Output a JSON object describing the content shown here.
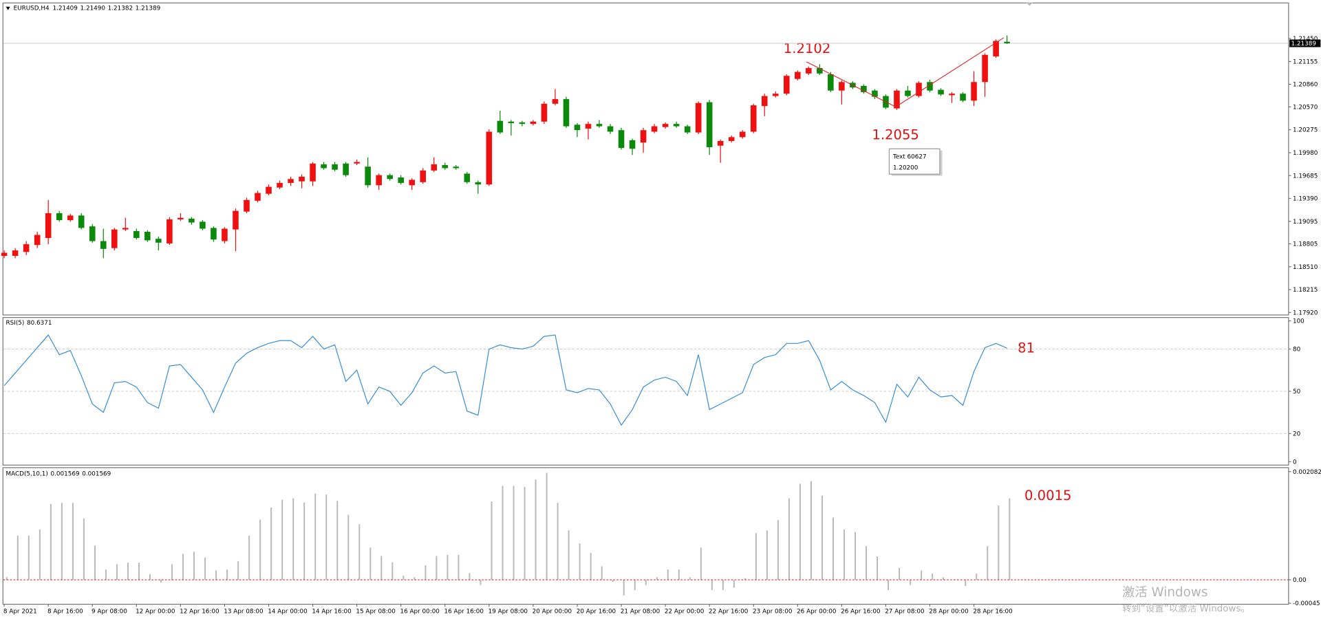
{
  "chart_data": [
    {
      "type": "candlestick",
      "symbol": "EURUSD,H4",
      "quote": {
        "values": [
          1.21409,
          1.2149,
          1.21382,
          1.21389
        ],
        "value_labels": [
          "1.21409",
          "1.21490",
          "1.21382",
          "1.21389"
        ]
      },
      "categories": [
        "8 Apr 2021",
        null,
        null,
        null,
        "8 Apr 16:00",
        null,
        null,
        null,
        "9 Apr 08:00",
        null,
        null,
        null,
        "12 Apr 00:00",
        null,
        null,
        null,
        "12 Apr 16:00",
        null,
        null,
        null,
        "13 Apr 08:00",
        null,
        null,
        null,
        "14 Apr 00:00",
        null,
        null,
        null,
        "14 Apr 16:00",
        null,
        null,
        null,
        "15 Apr 08:00",
        null,
        null,
        null,
        "16 Apr 00:00",
        null,
        null,
        null,
        "16 Apr 16:00",
        null,
        null,
        null,
        "19 Apr 08:00",
        null,
        null,
        null,
        "20 Apr 00:00",
        null,
        null,
        null,
        "20 Apr 16:00",
        null,
        null,
        null,
        "21 Apr 08:00",
        null,
        null,
        null,
        "22 Apr 00:00",
        null,
        null,
        null,
        "22 Apr 16:00",
        null,
        null,
        null,
        "23 Apr 08:00",
        null,
        null,
        null,
        "26 Apr 00:00",
        null,
        null,
        null,
        "26 Apr 16:00",
        null,
        null,
        null,
        "27 Apr 08:00",
        null,
        null,
        null,
        "28 Apr 00:00",
        null,
        null,
        null,
        "28 Apr 16:00",
        null,
        null,
        null
      ],
      "open": [
        1.1865,
        1.1865,
        1.187,
        1.1879,
        1.1888,
        1.192,
        1.1911,
        1.1917,
        1.1903,
        1.1884,
        1.1875,
        1.1899,
        1.1897,
        1.1896,
        1.1887,
        1.1881,
        1.1912,
        1.1913,
        1.1909,
        1.1901,
        1.1884,
        1.1899,
        1.1922,
        1.1936,
        1.1945,
        1.1953,
        1.1959,
        1.1961,
        1.1961,
        1.1983,
        1.1983,
        1.1984,
        1.1984,
        1.198,
        1.1956,
        1.1969,
        1.1966,
        1.1956,
        1.196,
        1.1975,
        1.1982,
        1.198,
        1.1971,
        1.196,
        1.1957,
        1.2039,
        1.2038,
        1.2037,
        1.2035,
        1.2038,
        1.2061,
        1.2067,
        1.2034,
        1.2029,
        1.2035,
        1.2032,
        1.2027,
        1.2014,
        1.2011,
        1.2025,
        1.2031,
        1.2035,
        1.2032,
        1.2024,
        1.2063,
        1.2007,
        1.2013,
        1.2018,
        1.2025,
        1.2058,
        1.2071,
        1.2074,
        1.2093,
        1.21,
        1.2107,
        1.2099,
        1.2078,
        1.2088,
        1.2084,
        1.2078,
        1.2071,
        1.2055,
        1.2078,
        1.2071,
        1.2089,
        1.2079,
        1.2072,
        1.2074,
        1.2065,
        1.2089,
        1.2122,
        1.21409
      ],
      "high": [
        1.1872,
        1.1875,
        1.1884,
        1.1896,
        1.1937,
        1.1923,
        1.1919,
        1.192,
        1.1906,
        1.19,
        1.1901,
        1.1914,
        1.19,
        1.1898,
        1.189,
        1.1915,
        1.192,
        1.1915,
        1.1911,
        1.1903,
        1.1902,
        1.1926,
        1.194,
        1.1949,
        1.1957,
        1.1962,
        1.1967,
        1.197,
        1.1986,
        1.1986,
        1.1986,
        1.1986,
        1.1989,
        1.1992,
        1.1971,
        1.1971,
        1.1969,
        1.1965,
        1.1978,
        1.1992,
        1.1985,
        1.1982,
        1.1973,
        1.1962,
        1.2028,
        1.2052,
        1.204,
        1.2039,
        1.204,
        1.2064,
        1.208,
        1.207,
        1.2036,
        1.2038,
        1.204,
        1.2035,
        1.203,
        1.2016,
        1.203,
        1.2035,
        1.2037,
        1.2038,
        1.2034,
        1.2064,
        1.2066,
        1.2015,
        1.202,
        1.2027,
        1.2061,
        1.2074,
        1.2077,
        1.2099,
        1.2104,
        1.2109,
        1.2112,
        1.2102,
        1.2091,
        1.209,
        1.2086,
        1.208,
        1.2073,
        1.208,
        1.2084,
        1.209,
        1.2092,
        1.2081,
        1.2076,
        1.2076,
        1.2103,
        1.2126,
        1.2144,
        1.2149
      ],
      "low": [
        1.1862,
        1.1862,
        1.1866,
        1.1875,
        1.188,
        1.1909,
        1.1909,
        1.1899,
        1.1882,
        1.1862,
        1.1872,
        1.1897,
        1.1886,
        1.1883,
        1.1872,
        1.1879,
        1.191,
        1.1905,
        1.1898,
        1.1883,
        1.1881,
        1.1871,
        1.192,
        1.1934,
        1.1943,
        1.1951,
        1.1955,
        1.1952,
        1.1955,
        1.1976,
        1.1974,
        1.1967,
        1.1982,
        1.1953,
        1.195,
        1.1962,
        1.1957,
        1.195,
        1.1958,
        1.1973,
        1.1976,
        1.1976,
        1.1958,
        1.1945,
        1.1955,
        1.2022,
        1.202,
        1.2032,
        1.2033,
        1.2035,
        1.2059,
        1.203,
        1.2018,
        1.2015,
        1.203,
        1.2022,
        1.2002,
        1.1995,
        1.1998,
        1.2023,
        1.2029,
        1.203,
        1.2022,
        1.2022,
        1.1995,
        1.1985,
        1.2011,
        1.2016,
        1.2023,
        1.2045,
        1.2069,
        1.2072,
        1.2091,
        1.2098,
        1.2098,
        1.2076,
        1.206,
        1.208,
        1.2074,
        1.2067,
        1.2054,
        1.2053,
        1.2069,
        1.2069,
        1.2076,
        1.2071,
        1.2062,
        1.2063,
        1.2058,
        1.207,
        1.212,
        1.21382
      ],
      "close": [
        1.1869,
        1.1872,
        1.188,
        1.1892,
        1.192,
        1.1911,
        1.1917,
        1.1901,
        1.1884,
        1.1874,
        1.1899,
        1.1901,
        1.1888,
        1.1885,
        1.1882,
        1.1912,
        1.1914,
        1.1908,
        1.19,
        1.1886,
        1.19,
        1.1923,
        1.1937,
        1.1946,
        1.1954,
        1.1959,
        1.1964,
        1.1967,
        1.1984,
        1.1978,
        1.1976,
        1.1969,
        1.1986,
        1.1956,
        1.1969,
        1.1964,
        1.1959,
        1.1963,
        1.1975,
        1.1983,
        1.1978,
        1.1978,
        1.196,
        1.1957,
        1.2025,
        1.2024,
        1.2036,
        1.2035,
        1.2038,
        1.2061,
        1.2067,
        1.2032,
        1.2027,
        1.2035,
        1.2032,
        1.2025,
        1.2004,
        1.2003,
        1.2027,
        1.2032,
        1.2035,
        1.2032,
        1.2024,
        1.2062,
        1.2005,
        1.2013,
        1.2018,
        1.2025,
        1.2059,
        1.2071,
        1.2074,
        1.2097,
        1.2102,
        1.2107,
        1.21,
        1.2078,
        1.2089,
        1.2082,
        1.2076,
        1.207,
        1.2056,
        1.2078,
        1.2071,
        1.2088,
        1.2078,
        1.2073,
        1.2074,
        1.2065,
        1.2089,
        1.2124,
        1.2142,
        1.21389
      ],
      "up_color": "#f01010",
      "down_color": "#0a8a0a",
      "trendline": {
        "x": [
          72.8,
          80.9,
          90.7
        ],
        "values": [
          1.2115,
          1.2057,
          1.2146
        ],
        "color": "#e02020"
      },
      "annotations": [
        "1.2102",
        "1.2055"
      ],
      "tooltip": [
        "Text 60627",
        "1.20200"
      ],
      "ylim": [
        1.17888,
        1.21909
      ],
      "yticks": [
        {
          "value": 1.2145,
          "label": "1.21450"
        },
        1.21155,
        {
          "value": 1.2086,
          "label": "1.20860"
        },
        {
          "value": 1.2057,
          "label": "1.20570"
        },
        1.20275,
        {
          "value": 1.1998,
          "label": "1.19980"
        },
        1.19685,
        {
          "value": 1.1939,
          "label": "1.19390"
        },
        1.19095,
        1.18805,
        {
          "value": 1.1851,
          "label": "1.18510"
        },
        1.18215,
        {
          "value": 1.1792,
          "label": "1.17920"
        }
      ]
    },
    {
      "type": "line",
      "name": "RSI(5)",
      "color": "#3a8fd8",
      "values": [
        54,
        63,
        72,
        81,
        90,
        76,
        79,
        61,
        41,
        35,
        56,
        57,
        53,
        42,
        38,
        68,
        69,
        60,
        51,
        35,
        53,
        70,
        77,
        81,
        84,
        86,
        86,
        81,
        89,
        80,
        83,
        57,
        65,
        41,
        53,
        50,
        40,
        49,
        63,
        68,
        63,
        64,
        36,
        33,
        80,
        83,
        81,
        80,
        82,
        89,
        90,
        51,
        49,
        52,
        51,
        41,
        26,
        37,
        53,
        58,
        60,
        57,
        47,
        76,
        37,
        41,
        45,
        49,
        69,
        74,
        76,
        84,
        84,
        86,
        72,
        51,
        57,
        51,
        47,
        42,
        28,
        55,
        46,
        60,
        51,
        46,
        47,
        40,
        64,
        81,
        84,
        80.6371
      ],
      "levels": [
        20,
        50,
        80
      ],
      "annotations": [
        "81"
      ],
      "ylim": [
        -2.4,
        102.4
      ],
      "yticks": [
        0,
        20,
        50,
        80,
        100
      ]
    },
    {
      "type": "bar",
      "name": "MACD(5,10,1)",
      "color": "#b8b8b8",
      "zero_color": "#e02020",
      "values": [
        5e-05,
        0.00085,
        0.00085,
        0.00097,
        0.00146,
        0.00148,
        0.00148,
        0.00118,
        0.00066,
        0.0002,
        0.0003,
        0.00033,
        0.00033,
        0.00011,
        -5e-05,
        0.0003,
        0.0005,
        0.00054,
        0.00043,
        0.00018,
        0.0002,
        0.00036,
        0.00085,
        0.00116,
        0.00139,
        0.00154,
        0.00157,
        0.00149,
        0.00166,
        0.00164,
        0.00152,
        0.00125,
        0.00107,
        0.00062,
        0.00046,
        0.00034,
        8e-05,
        5e-05,
        0.00028,
        0.00046,
        0.00048,
        0.00048,
        0.00013,
        -0.0001,
        0.00151,
        0.00181,
        0.00181,
        0.00179,
        0.00193,
        0.00206,
        0.00148,
        0.00095,
        0.0007,
        0.00052,
        0.00026,
        -4e-05,
        -0.0003,
        -0.0002,
        -0.0001,
        5e-05,
        0.0002,
        0.0002,
        5e-05,
        0.00062,
        -0.0002,
        -0.0002,
        -0.00015,
        3e-05,
        0.0009,
        0.00095,
        0.00115,
        0.00157,
        0.00185,
        0.0019,
        0.00162,
        0.0012,
        0.00097,
        0.00092,
        0.00065,
        0.00045,
        -0.0002,
        0.00023,
        -0.0001,
        0.00018,
        0.00012,
        5e-05,
        1e-05,
        -0.00012,
        0.00012,
        0.00065,
        0.00143,
        0.001569
      ],
      "annotations": [
        "0.0015"
      ],
      "ylim": [
        -0.00047,
        0.00216
      ],
      "yticks": [
        0.002082,
        {
          "value": 0,
          "label": "0.00"
        },
        -0.00045
      ]
    }
  ],
  "watermark": [
    "激活 Windows",
    "转到“设置”以激活 Windows。"
  ]
}
